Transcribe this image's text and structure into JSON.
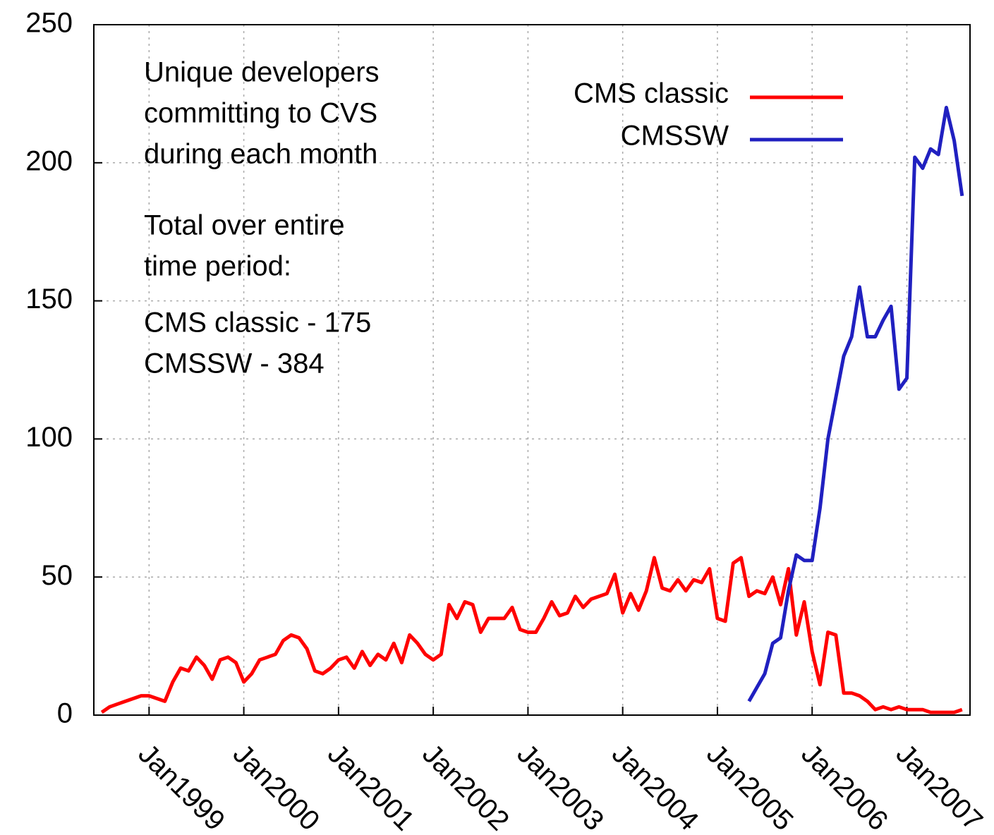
{
  "chart_data": {
    "type": "line",
    "annotations": [
      [
        "Unique developers",
        "committing to CVS",
        "during each month"
      ],
      [
        "Total over entire",
        "time period:"
      ],
      [
        "CMS classic - 175",
        "CMSSW - 384"
      ]
    ],
    "x": [
      "1998-07",
      "1998-08",
      "1998-09",
      "1998-10",
      "1998-11",
      "1998-12",
      "1999-01",
      "1999-02",
      "1999-03",
      "1999-04",
      "1999-05",
      "1999-06",
      "1999-07",
      "1999-08",
      "1999-09",
      "1999-10",
      "1999-11",
      "1999-12",
      "2000-01",
      "2000-02",
      "2000-03",
      "2000-04",
      "2000-05",
      "2000-06",
      "2000-07",
      "2000-08",
      "2000-09",
      "2000-10",
      "2000-11",
      "2000-12",
      "2001-01",
      "2001-02",
      "2001-03",
      "2001-04",
      "2001-05",
      "2001-06",
      "2001-07",
      "2001-08",
      "2001-09",
      "2001-10",
      "2001-11",
      "2001-12",
      "2002-01",
      "2002-02",
      "2002-03",
      "2002-04",
      "2002-05",
      "2002-06",
      "2002-07",
      "2002-08",
      "2002-09",
      "2002-10",
      "2002-11",
      "2002-12",
      "2003-01",
      "2003-02",
      "2003-03",
      "2003-04",
      "2003-05",
      "2003-06",
      "2003-07",
      "2003-08",
      "2003-09",
      "2003-10",
      "2003-11",
      "2003-12",
      "2004-01",
      "2004-02",
      "2004-03",
      "2004-04",
      "2004-05",
      "2004-06",
      "2004-07",
      "2004-08",
      "2004-09",
      "2004-10",
      "2004-11",
      "2004-12",
      "2005-01",
      "2005-02",
      "2005-03",
      "2005-04",
      "2005-05",
      "2005-06",
      "2005-07",
      "2005-08",
      "2005-09",
      "2005-10",
      "2005-11",
      "2005-12",
      "2006-01",
      "2006-02",
      "2006-03",
      "2006-04",
      "2006-05",
      "2006-06",
      "2006-07",
      "2006-08",
      "2006-09",
      "2006-10",
      "2006-11",
      "2006-12",
      "2007-01",
      "2007-02",
      "2007-03",
      "2007-04",
      "2007-05",
      "2007-06",
      "2007-07",
      "2007-08"
    ],
    "series": [
      {
        "name": "CMS classic",
        "color": "#ff0000",
        "values": [
          1,
          3,
          4,
          5,
          6,
          7,
          7,
          6,
          5,
          12,
          17,
          16,
          21,
          18,
          13,
          20,
          21,
          19,
          12,
          15,
          20,
          21,
          22,
          27,
          29,
          28,
          24,
          16,
          15,
          17,
          20,
          21,
          17,
          23,
          18,
          22,
          20,
          26,
          19,
          29,
          26,
          22,
          20,
          22,
          40,
          35,
          41,
          40,
          30,
          35,
          35,
          35,
          39,
          31,
          30,
          30,
          35,
          41,
          36,
          37,
          43,
          39,
          42,
          43,
          44,
          51,
          37,
          44,
          38,
          45,
          57,
          46,
          45,
          49,
          45,
          49,
          48,
          53,
          35,
          34,
          55,
          57,
          43,
          45,
          44,
          50,
          40,
          53,
          29,
          41,
          23,
          11,
          30,
          29,
          8,
          8,
          7,
          5,
          2,
          3,
          2,
          3,
          2,
          2,
          2,
          1,
          1,
          1,
          1,
          2
        ]
      },
      {
        "name": "CMSSW",
        "color": "#2020c0",
        "values": [
          null,
          null,
          null,
          null,
          null,
          null,
          null,
          null,
          null,
          null,
          null,
          null,
          null,
          null,
          null,
          null,
          null,
          null,
          null,
          null,
          null,
          null,
          null,
          null,
          null,
          null,
          null,
          null,
          null,
          null,
          null,
          null,
          null,
          null,
          null,
          null,
          null,
          null,
          null,
          null,
          null,
          null,
          null,
          null,
          null,
          null,
          null,
          null,
          null,
          null,
          null,
          null,
          null,
          null,
          null,
          null,
          null,
          null,
          null,
          null,
          null,
          null,
          null,
          null,
          null,
          null,
          null,
          null,
          null,
          null,
          null,
          null,
          null,
          null,
          null,
          null,
          null,
          null,
          null,
          null,
          null,
          null,
          5,
          10,
          15,
          26,
          28,
          45,
          58,
          56,
          56,
          75,
          100,
          115,
          130,
          137,
          155,
          137,
          137,
          143,
          148,
          118,
          122,
          202,
          198,
          205,
          203,
          220,
          208,
          188
        ]
      }
    ],
    "xlim": [
      "1998-06",
      "2007-09"
    ],
    "xticks": [
      {
        "value": "1999-01",
        "label": "Jan1999"
      },
      {
        "value": "2000-01",
        "label": "Jan2000"
      },
      {
        "value": "2001-01",
        "label": "Jan2001"
      },
      {
        "value": "2002-01",
        "label": "Jan2002"
      },
      {
        "value": "2003-01",
        "label": "Jan2003"
      },
      {
        "value": "2004-01",
        "label": "Jan2004"
      },
      {
        "value": "2005-01",
        "label": "Jan2005"
      },
      {
        "value": "2006-01",
        "label": "Jan2006"
      },
      {
        "value": "2007-01",
        "label": "Jan2007"
      }
    ],
    "ylim": [
      0,
      250
    ],
    "yticks": [
      0,
      50,
      100,
      150,
      200,
      250
    ],
    "grid": true,
    "legend": "top-right"
  }
}
